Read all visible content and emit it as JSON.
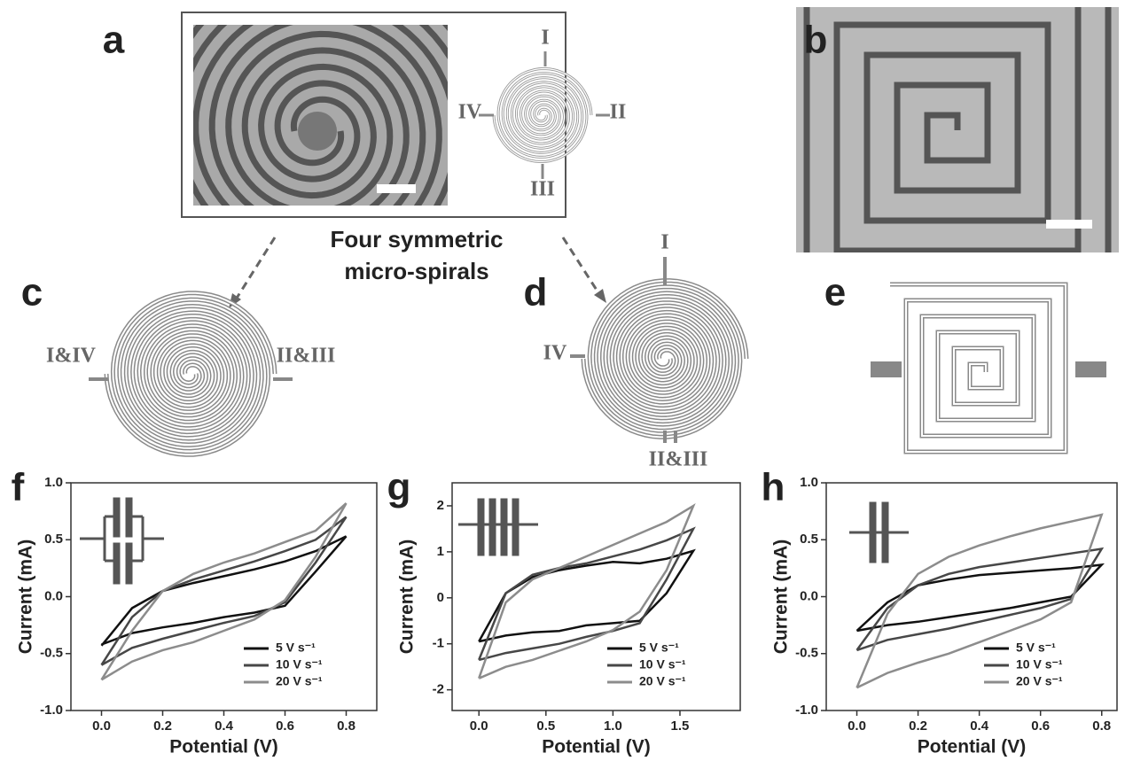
{
  "figure": {
    "panel_labels": [
      "a",
      "b",
      "c",
      "d",
      "e"
    ],
    "panel_a_terminals": [
      "I",
      "II",
      "III",
      "IV"
    ],
    "arrow_caption": [
      "Four symmetric",
      "micro-spirals"
    ],
    "panel_c_terminals": [
      "I&IV",
      "II&III"
    ],
    "panel_d_terminals": [
      "I",
      "IV",
      "II&III"
    ]
  },
  "chart_data": [
    {
      "type": "line",
      "panel_label": "f",
      "xlabel": "Potential (V)",
      "ylabel": "Current (mA)",
      "xlim": [
        -0.1,
        0.9
      ],
      "ylim": [
        -1.0,
        1.0
      ],
      "xticks": [
        {
          "value": 0,
          "label": "0.0"
        },
        0.2,
        0.4,
        0.6,
        0.8
      ],
      "yticks": [
        {
          "value": -1,
          "label": "-1.0"
        },
        -0.5,
        {
          "value": 0,
          "label": "0.0"
        },
        0.5,
        {
          "value": 1,
          "label": "1.0"
        }
      ],
      "legend": "lower right",
      "x": [
        0,
        0.1,
        0.2,
        0.3,
        0.4,
        0.5,
        0.6,
        0.7,
        0.8,
        0.7,
        0.6,
        0.5,
        0.4,
        0.3,
        0.2,
        0.1,
        0
      ],
      "series": [
        {
          "name": "5 V s⁻¹",
          "color": "#111111",
          "values": [
            -0.43,
            -0.1,
            0.05,
            0.12,
            0.18,
            0.24,
            0.31,
            0.4,
            0.53,
            0.22,
            -0.08,
            -0.14,
            -0.18,
            -0.23,
            -0.27,
            -0.32,
            -0.42
          ]
        },
        {
          "name": "10 V s⁻¹",
          "color": "#474747",
          "values": [
            -0.6,
            -0.18,
            0.05,
            0.15,
            0.23,
            0.31,
            0.4,
            0.5,
            0.7,
            0.3,
            -0.05,
            -0.17,
            -0.23,
            -0.3,
            -0.37,
            -0.45,
            -0.6
          ]
        },
        {
          "name": "20 V s⁻¹",
          "color": "#8c8c8c",
          "values": [
            -0.73,
            -0.3,
            0.05,
            0.2,
            0.3,
            0.38,
            0.48,
            0.58,
            0.82,
            0.35,
            -0.03,
            -0.2,
            -0.3,
            -0.4,
            -0.47,
            -0.57,
            -0.73
          ]
        }
      ]
    },
    {
      "type": "line",
      "panel_label": "g",
      "xlabel": "Potential (V)",
      "ylabel": "Current (mA)",
      "xlim": [
        -0.2,
        1.95
      ],
      "ylim": [
        -2.45,
        2.5
      ],
      "xticks": [
        {
          "value": 0,
          "label": "0.0"
        },
        0.5,
        {
          "value": 1,
          "label": "1.0"
        },
        1.5
      ],
      "yticks": [
        -2,
        -1,
        0,
        1,
        2
      ],
      "legend": "lower right",
      "x": [
        0,
        0.2,
        0.4,
        0.6,
        0.8,
        1.0,
        1.2,
        1.4,
        1.6,
        1.4,
        1.2,
        1.0,
        0.8,
        0.6,
        0.4,
        0.2,
        0
      ],
      "series": [
        {
          "name": "5 V s⁻¹",
          "color": "#111111",
          "values": [
            -0.95,
            0.1,
            0.45,
            0.6,
            0.7,
            0.78,
            0.75,
            0.85,
            1.02,
            0.1,
            -0.5,
            -0.55,
            -0.6,
            -0.72,
            -0.75,
            -0.82,
            -0.95
          ]
        },
        {
          "name": "10 V s⁻¹",
          "color": "#474747",
          "values": [
            -1.35,
            0.1,
            0.5,
            0.65,
            0.75,
            0.9,
            1.05,
            1.25,
            1.5,
            0.4,
            -0.55,
            -0.72,
            -0.85,
            -1.0,
            -1.1,
            -1.2,
            -1.35
          ]
        },
        {
          "name": "20 V s⁻¹",
          "color": "#8c8c8c",
          "values": [
            -1.75,
            -0.1,
            0.4,
            0.65,
            0.9,
            1.15,
            1.4,
            1.65,
            2.0,
            0.6,
            -0.3,
            -0.7,
            -0.95,
            -1.15,
            -1.35,
            -1.5,
            -1.75
          ]
        }
      ]
    },
    {
      "type": "line",
      "panel_label": "h",
      "xlabel": "Potential (V)",
      "ylabel": "Current (mA)",
      "xlim": [
        -0.1,
        0.85
      ],
      "ylim": [
        -1.0,
        1.0
      ],
      "xticks": [
        {
          "value": 0,
          "label": "0.0"
        },
        0.2,
        0.4,
        0.6,
        0.8
      ],
      "yticks": [
        {
          "value": -1,
          "label": "-1.0"
        },
        -0.5,
        {
          "value": 0,
          "label": "0.0"
        },
        0.5,
        {
          "value": 1,
          "label": "1.0"
        }
      ],
      "legend": "lower right",
      "x": [
        0,
        0.1,
        0.2,
        0.3,
        0.4,
        0.5,
        0.6,
        0.7,
        0.8,
        0.7,
        0.6,
        0.5,
        0.4,
        0.3,
        0.2,
        0.1,
        0
      ],
      "series": [
        {
          "name": "5 V s⁻¹",
          "color": "#111111",
          "values": [
            -0.3,
            -0.05,
            0.1,
            0.15,
            0.19,
            0.21,
            0.23,
            0.25,
            0.28,
            0.0,
            -0.05,
            -0.1,
            -0.14,
            -0.18,
            -0.22,
            -0.25,
            -0.3
          ]
        },
        {
          "name": "10 V s⁻¹",
          "color": "#474747",
          "values": [
            -0.47,
            -0.1,
            0.1,
            0.2,
            0.26,
            0.3,
            0.34,
            0.38,
            0.42,
            -0.02,
            -0.1,
            -0.16,
            -0.22,
            -0.28,
            -0.33,
            -0.38,
            -0.47
          ]
        },
        {
          "name": "20 V s⁻¹",
          "color": "#8c8c8c",
          "values": [
            -0.8,
            -0.15,
            0.2,
            0.35,
            0.45,
            0.53,
            0.6,
            0.66,
            0.72,
            -0.05,
            -0.2,
            -0.3,
            -0.4,
            -0.5,
            -0.58,
            -0.67,
            -0.8
          ]
        }
      ]
    }
  ]
}
